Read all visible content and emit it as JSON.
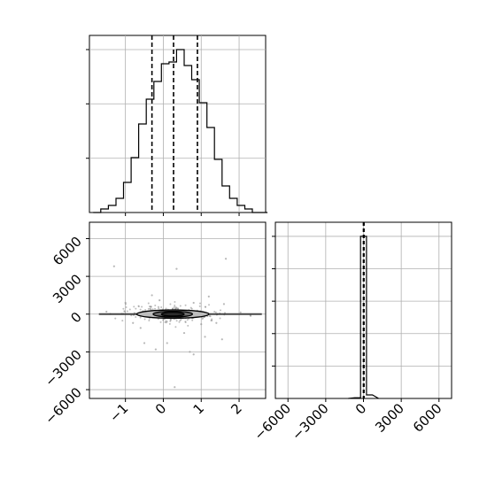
{
  "chart_data": [
    {
      "type": "histogram",
      "panel": "top-left",
      "variable_index": 0,
      "xlim": [
        -1.95,
        2.7
      ],
      "ylim": [
        0,
        1.0
      ],
      "grid": true,
      "bin_start": -1.85,
      "bin_width": 0.2,
      "counts": [
        0.0,
        0.02,
        0.04,
        0.08,
        0.17,
        0.31,
        0.5,
        0.64,
        0.74,
        0.84,
        0.85,
        0.92,
        0.83,
        0.75,
        0.62,
        0.48,
        0.3,
        0.15,
        0.08,
        0.04,
        0.02,
        0.0,
        0.0
      ],
      "quantile_lines": [
        -0.3,
        0.27,
        0.9
      ],
      "xticks": [
        -1,
        0,
        1,
        2
      ],
      "yticks_shown": false
    },
    {
      "type": "histogram",
      "panel": "bottom-right",
      "variable_index": 1,
      "xlim": [
        -7000,
        7000
      ],
      "ylim": [
        0,
        1.0
      ],
      "grid": true,
      "bin_start": -700,
      "bin_width": 470,
      "counts": [
        0.004,
        0.92,
        0.02
      ],
      "quantile_lines": [
        -20,
        20,
        60
      ],
      "xticks": [
        -6000,
        -3000,
        0,
        3000,
        6000
      ],
      "xtick_labels": [
        "−6000",
        "−3000",
        "0",
        "3000",
        "6000"
      ]
    },
    {
      "type": "scatter",
      "panel": "bottom-left",
      "xlim": [
        -1.95,
        2.7
      ],
      "ylim": [
        -6700,
        7300
      ],
      "grid": true,
      "xticks": [
        -1,
        0,
        1,
        2
      ],
      "xtick_labels": [
        "−1",
        "0",
        "1",
        "2"
      ],
      "yticks": [
        -6000,
        -3000,
        0,
        3000,
        6000
      ],
      "ytick_labels": [
        "−6000",
        "−3000",
        "0",
        "3000",
        "6000"
      ],
      "center": [
        0.25,
        0
      ],
      "contours": [
        {
          "rx": 0.95,
          "ry": 330
        },
        {
          "rx": 0.52,
          "ry": 230
        },
        {
          "rx": 0.3,
          "ry": 150
        }
      ],
      "outliers": [
        [
          -1.3,
          3800
        ],
        [
          -0.3,
          1500
        ],
        [
          0.35,
          3600
        ],
        [
          0.8,
          900
        ],
        [
          1.2,
          1400
        ],
        [
          -0.6,
          -1100
        ],
        [
          -0.5,
          -2300
        ],
        [
          -0.2,
          -2800
        ],
        [
          0.1,
          -2300
        ],
        [
          0.3,
          -5800
        ],
        [
          0.7,
          -3000
        ],
        [
          0.8,
          -3200
        ],
        [
          1.1,
          -1800
        ],
        [
          1.55,
          -2000
        ],
        [
          1.65,
          4400
        ],
        [
          -1.0,
          900
        ],
        [
          -0.8,
          -700
        ],
        [
          1.4,
          -700
        ],
        [
          1.6,
          800
        ],
        [
          -1.5,
          200
        ],
        [
          2.3,
          -100
        ],
        [
          -0.1,
          1100
        ],
        [
          0.55,
          -1500
        ],
        [
          1.0,
          -800
        ]
      ]
    }
  ]
}
